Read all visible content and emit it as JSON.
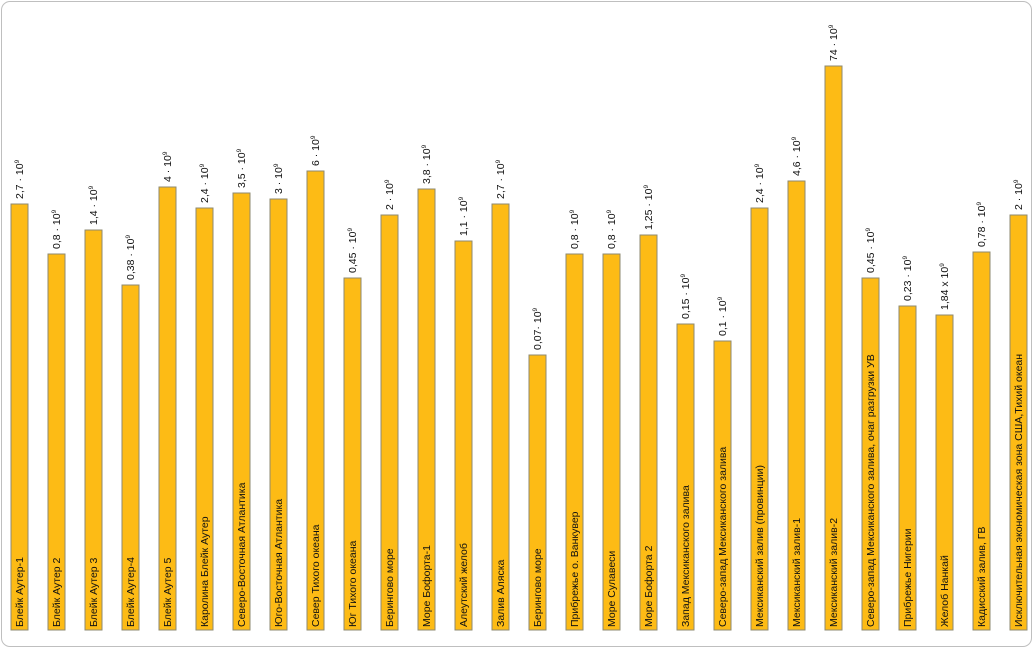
{
  "chart_data": {
    "type": "bar",
    "orientation": "vertical",
    "color": "#fdbb15",
    "border_color": "#8e8a70",
    "grid": false,
    "legend": "none",
    "ylim": [
      0,
      78
    ],
    "categories": [
      "Блейк Аутер-1",
      "Блейк Аутер 2",
      "Блейк Аутер 3",
      "Блейк Аутер-4",
      "Блейк Аутер 5",
      "Каролина Блейк Аутер",
      "Северо-Восточная Атлантика",
      "Юго-Восточная Атлантика",
      "Север Тихого океана",
      "Юг Тихого океана",
      "Берингово море",
      "Море Бофорта-1",
      "Алеутский желоб",
      "Залив Аляска",
      "Берингово море",
      "Прибрежье о. Ванкувер",
      "Море Сулавеси",
      "Море Бофорта 2",
      "Запад Мексиканского залива",
      "Северо-запад Мексиканского залива",
      "Мексиканский залив (провинции)",
      "Мексиканский залив-1",
      "Мексиканский залив-2",
      "Северо-запад Мексиканского залива, очаг разгрузки УВ",
      "Прибрежье Нигерии",
      "Желоб Нанкай",
      "Кадисский залив, ГВ",
      "Исключительная экономическая зона США,Тихий океан"
    ],
    "values": [
      2.7,
      0.8,
      1.4,
      0.38,
      4,
      2.4,
      3.5,
      3,
      6,
      0.45,
      2,
      3.8,
      1.1,
      2.7,
      0.07,
      0.8,
      0.8,
      1.25,
      0.15,
      0.1,
      2.4,
      4.6,
      74,
      0.45,
      0.23,
      1.84,
      0.78,
      2
    ],
    "data_labels": [
      {
        "text": "2,7 · 10",
        "exp": "9"
      },
      {
        "text": "0,8 · 10",
        "exp": "9"
      },
      {
        "text": "1,4 · 10",
        "exp": "9"
      },
      {
        "text": "0,38 · 10",
        "exp": "9"
      },
      {
        "text": "4 · 10",
        "exp": "9"
      },
      {
        "text": "2,4 · 10",
        "exp": "9"
      },
      {
        "text": "3,5 · 10",
        "exp": "9"
      },
      {
        "text": "3 · 10",
        "exp": "9"
      },
      {
        "text": "6 · 10",
        "exp": "9"
      },
      {
        "text": "0,45 · 10",
        "exp": "9"
      },
      {
        "text": "2 · 10",
        "exp": "9"
      },
      {
        "text": "3,8 · 10",
        "exp": "9"
      },
      {
        "text": "1,1 · 10",
        "exp": "9"
      },
      {
        "text": "2,7 · 10",
        "exp": "9"
      },
      {
        "text": "0,07· 10",
        "exp": "9"
      },
      {
        "text": "0,8 · 10",
        "exp": "9"
      },
      {
        "text": "0,8 · 10",
        "exp": "9"
      },
      {
        "text": "1,25 · 10",
        "exp": "9"
      },
      {
        "text": "0,15 · 10",
        "exp": "9"
      },
      {
        "text": "0,1 · 10",
        "exp": "9"
      },
      {
        "text": "2,4 · 10",
        "exp": "9"
      },
      {
        "text": "4,6 · 10",
        "exp": "9"
      },
      {
        "text": "74 · 10",
        "exp": "9"
      },
      {
        "text": "0,45 · 10",
        "exp": "9"
      },
      {
        "text": "0,23 · 10",
        "exp": "9"
      },
      {
        "text": "1,84 x 10",
        "exp": "9"
      },
      {
        "text": "0,78 · 10",
        "exp": "9"
      },
      {
        "text": "2 · 10",
        "exp": "9"
      }
    ],
    "title": "",
    "xlabel": "",
    "ylabel": ""
  }
}
